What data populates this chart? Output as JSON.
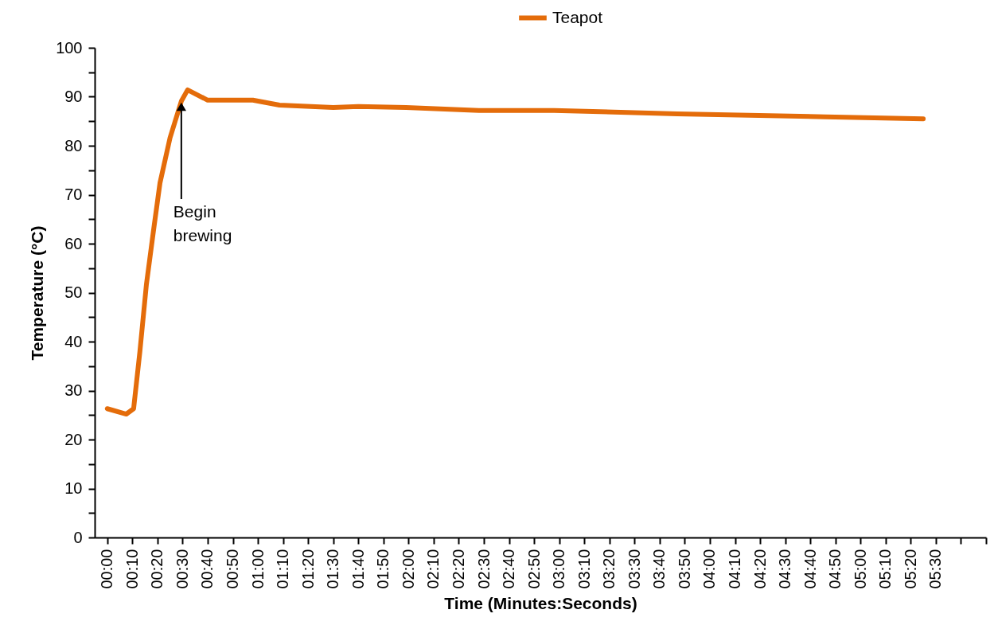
{
  "chart_data": {
    "type": "line",
    "xlabel": "Time (Minutes:Seconds)",
    "ylabel": "Temperature (°C)",
    "xlim": [
      -5,
      350
    ],
    "xticks": [
      {
        "value": 0,
        "label": "00:00"
      },
      {
        "value": 10,
        "label": "00:10"
      },
      {
        "value": 20,
        "label": "00:20"
      },
      {
        "value": 30,
        "label": "00:30"
      },
      {
        "value": 40,
        "label": "00:40"
      },
      {
        "value": 50,
        "label": "00:50"
      },
      {
        "value": 60,
        "label": "01:00"
      },
      {
        "value": 70,
        "label": "01:10"
      },
      {
        "value": 80,
        "label": "01:20"
      },
      {
        "value": 90,
        "label": "01:30"
      },
      {
        "value": 100,
        "label": "01:40"
      },
      {
        "value": 110,
        "label": "01:50"
      },
      {
        "value": 120,
        "label": "02:00"
      },
      {
        "value": 130,
        "label": "02:10"
      },
      {
        "value": 140,
        "label": "02:20"
      },
      {
        "value": 150,
        "label": "02:30"
      },
      {
        "value": 160,
        "label": "02:40"
      },
      {
        "value": 170,
        "label": "02:50"
      },
      {
        "value": 180,
        "label": "03:00"
      },
      {
        "value": 190,
        "label": "03:10"
      },
      {
        "value": 200,
        "label": "03:20"
      },
      {
        "value": 210,
        "label": "03:30"
      },
      {
        "value": 220,
        "label": "03:40"
      },
      {
        "value": 230,
        "label": "03:50"
      },
      {
        "value": 240,
        "label": "04:00"
      },
      {
        "value": 250,
        "label": "04:10"
      },
      {
        "value": 260,
        "label": "04:20"
      },
      {
        "value": 270,
        "label": "04:30"
      },
      {
        "value": 280,
        "label": "04:40"
      },
      {
        "value": 290,
        "label": "04:50"
      },
      {
        "value": 300,
        "label": "05:00"
      },
      {
        "value": 310,
        "label": "05:10"
      },
      {
        "value": 320,
        "label": "05:20"
      },
      {
        "value": 330,
        "label": "05:30"
      },
      {
        "value": 340,
        "label": null
      },
      {
        "value": 350,
        "label": null
      }
    ],
    "ylim": [
      0,
      100
    ],
    "yticks": [
      0,
      {
        "value": 5,
        "label": null
      },
      10,
      {
        "value": 15,
        "label": null
      },
      20,
      {
        "value": 25,
        "label": null
      },
      30,
      {
        "value": 35,
        "label": null
      },
      40,
      {
        "value": 45,
        "label": null
      },
      50,
      {
        "value": 55,
        "label": null
      },
      60,
      {
        "value": 65,
        "label": null
      },
      70,
      {
        "value": 75,
        "label": null
      },
      80,
      {
        "value": 85,
        "label": null
      },
      90,
      {
        "value": 95,
        "label": null
      },
      100
    ],
    "grid": false,
    "legend": "top",
    "marker": "none",
    "line_style": "solid",
    "series": [
      {
        "name": "Teapot",
        "color": "#e46c0a",
        "x": [
          0,
          7.6,
          10.5,
          13,
          15.6,
          18.4,
          21,
          25,
          29.5,
          32,
          40,
          58,
          68.6,
          90,
          100,
          119,
          148,
          178,
          227,
          286,
          325
        ],
        "values": [
          26.3,
          25.2,
          26.3,
          38,
          51.7,
          62.6,
          72.4,
          81.6,
          89.1,
          91.4,
          89.3,
          89.3,
          88.3,
          87.8,
          88.0,
          87.8,
          87.2,
          87.2,
          86.5,
          85.9,
          85.5
        ]
      }
    ],
    "annotations": [
      {
        "text": "Begin brewing",
        "x": 29.5,
        "y": 89.1
      }
    ]
  }
}
